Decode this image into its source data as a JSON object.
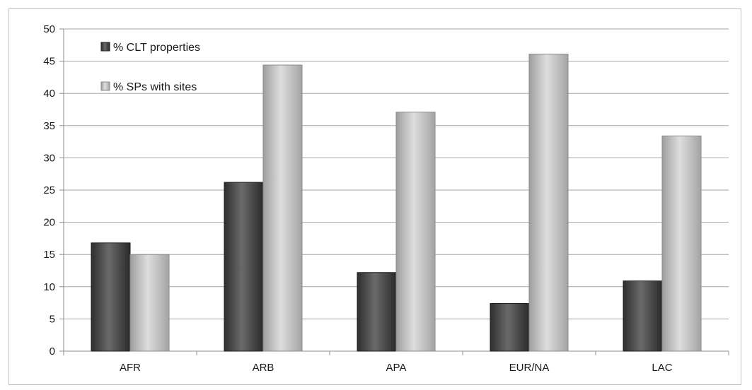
{
  "chart_data": {
    "type": "bar",
    "categories": [
      "AFR",
      "ARB",
      "APA",
      "EUR/NA",
      "LAC"
    ],
    "series": [
      {
        "name": "% CLT properties",
        "color": "#4d4d4d",
        "values": [
          16.8,
          26.2,
          12.2,
          7.4,
          10.9
        ]
      },
      {
        "name": "% SPs with sites",
        "color": "#bdbdbd",
        "values": [
          15.0,
          44.4,
          37.1,
          46.1,
          33.4
        ]
      }
    ],
    "title": "",
    "xlabel": "",
    "ylabel": "",
    "ylim": [
      0,
      50
    ],
    "yticks": [
      "0",
      "5",
      "10",
      "15",
      "20",
      "25",
      "30",
      "35",
      "40",
      "45",
      "50"
    ],
    "grid": true,
    "legend_position": "top-left"
  }
}
